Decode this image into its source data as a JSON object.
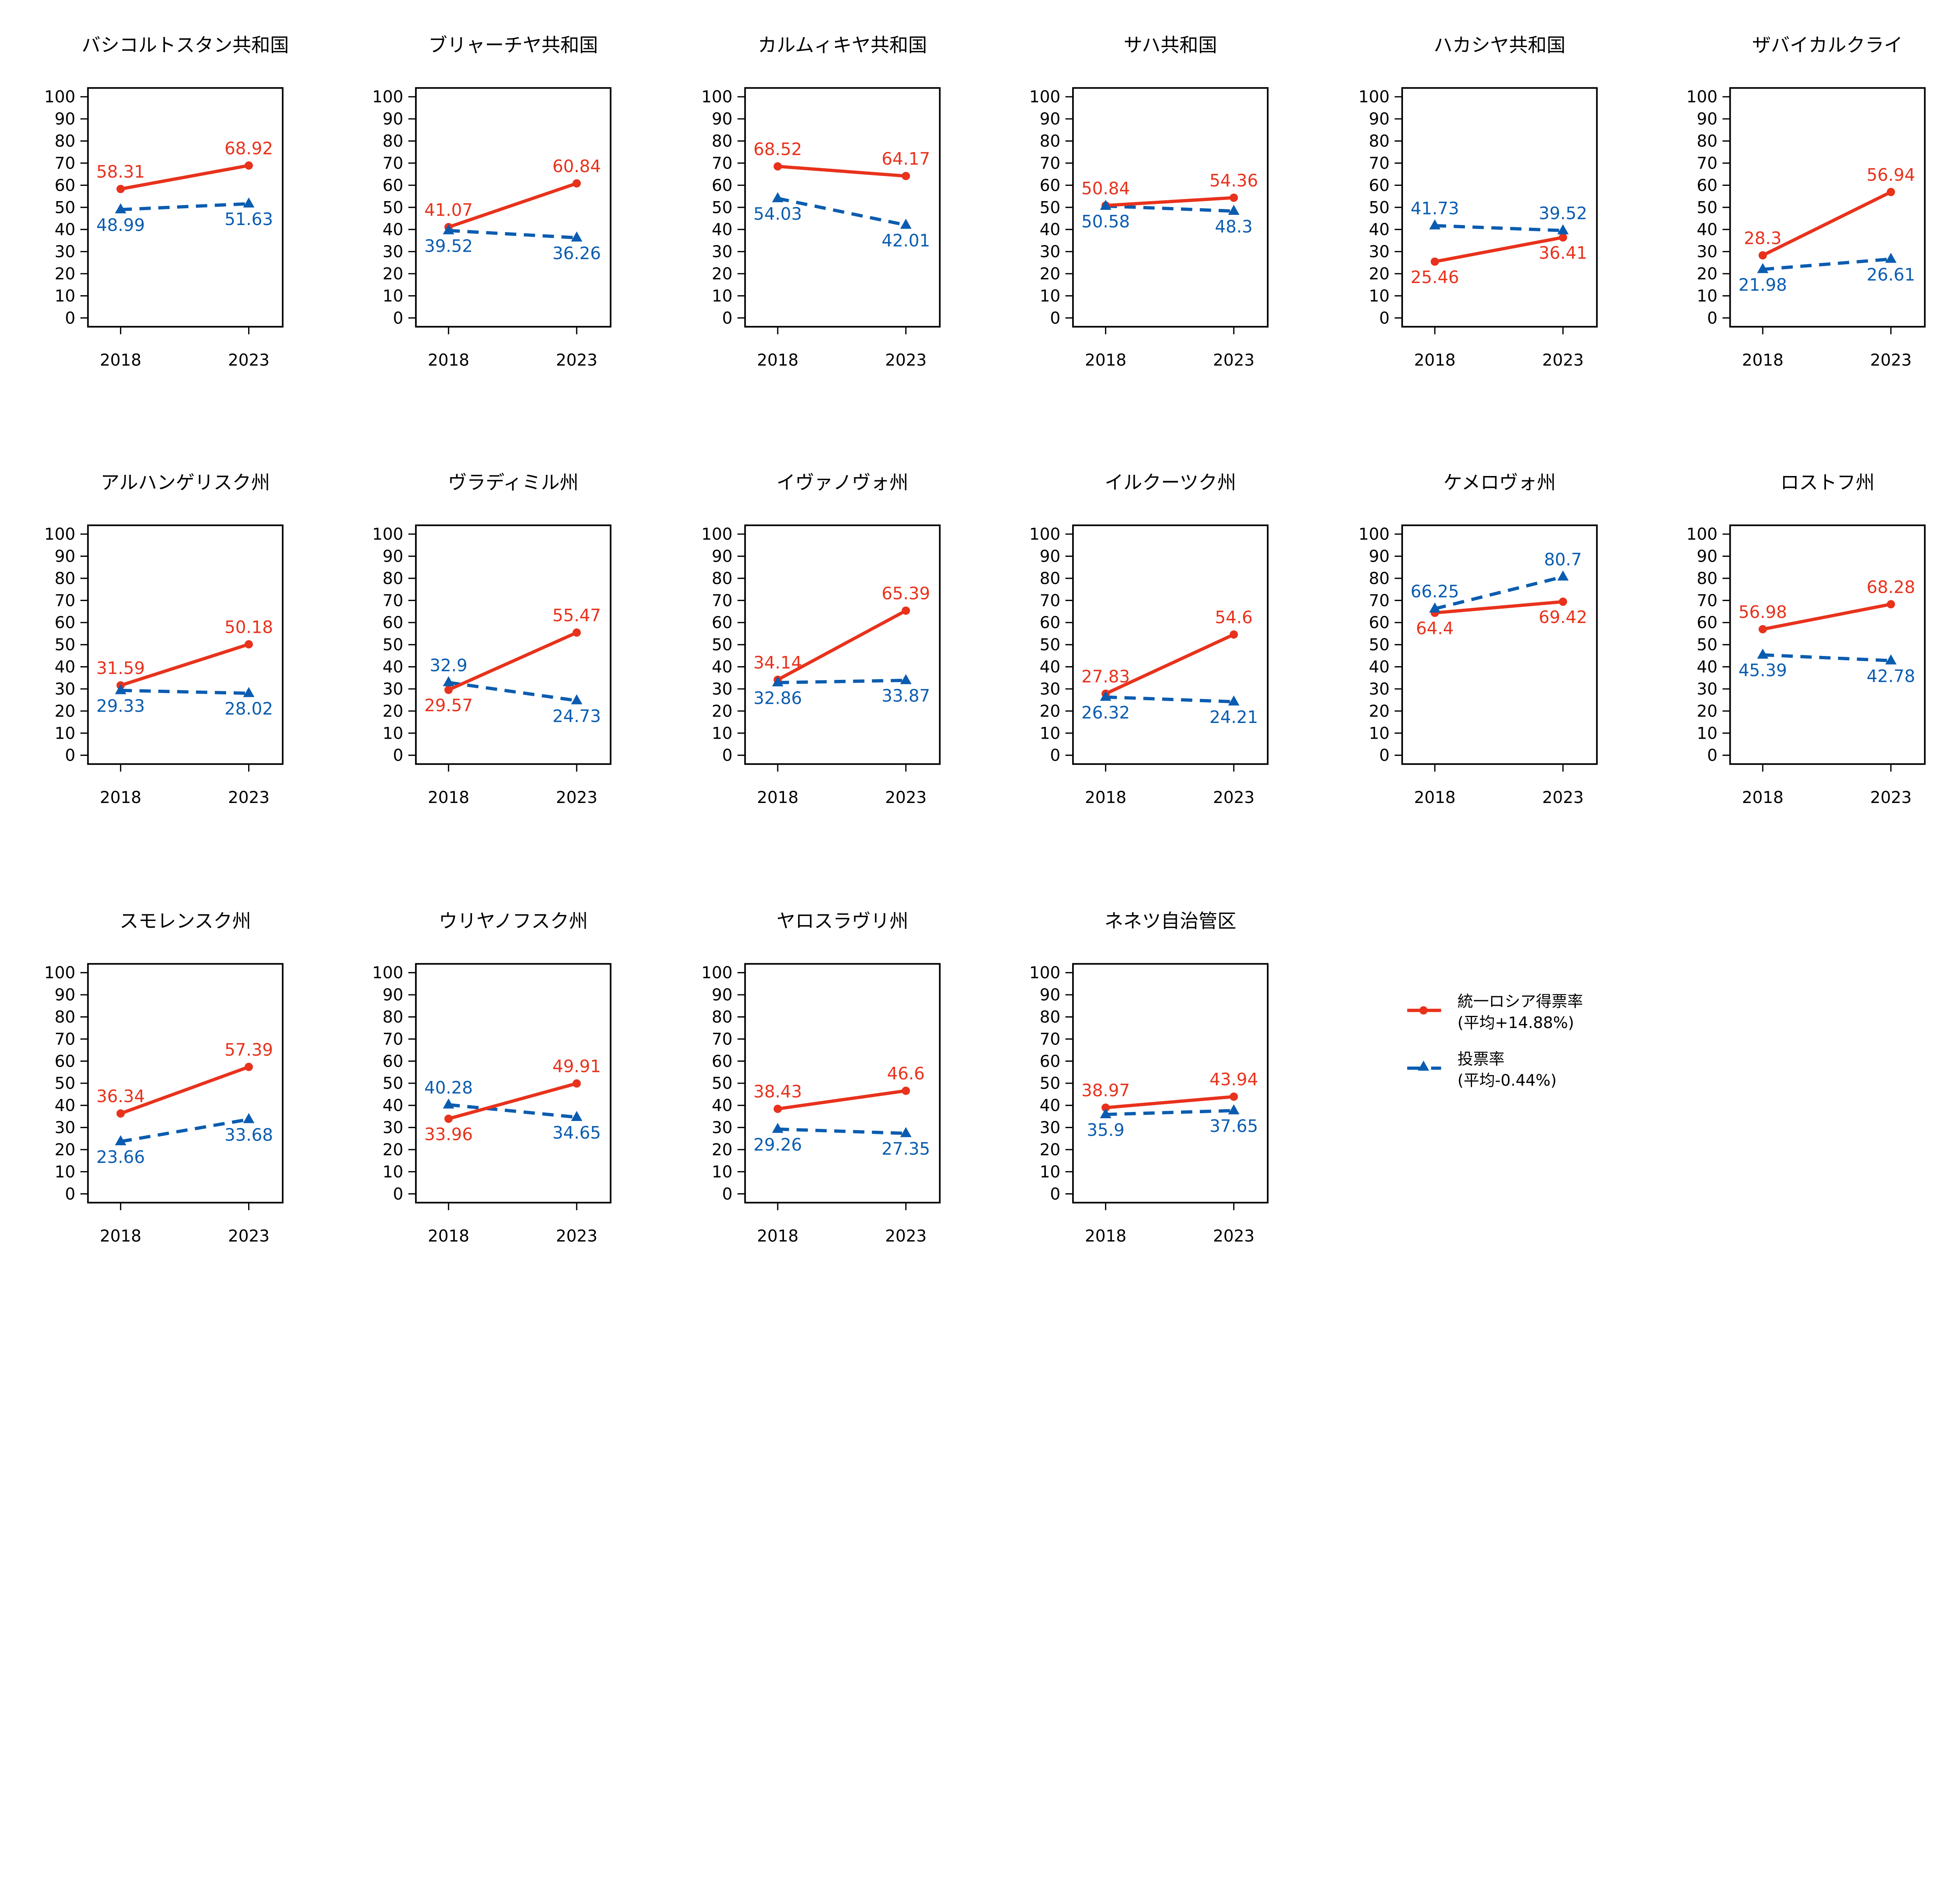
{
  "chart_data": {
    "type": "line",
    "layout": "small multiples, 3 rows x 6 columns",
    "x": [
      "2018",
      "2023"
    ],
    "ylim": [
      0,
      100
    ],
    "yticks": [
      0,
      10,
      20,
      30,
      40,
      50,
      60,
      70,
      80,
      90,
      100
    ],
    "grid": false,
    "legend_placement": "bottom-right",
    "series_styles": [
      {
        "name": "統一ロシア得票率",
        "note": "(平均+14.88%)",
        "color": "#e8321c",
        "line": "solid",
        "marker": "circle"
      },
      {
        "name": "投票率",
        "note": "(平均-0.44%)",
        "color": "#0a5cb0",
        "line": "dashed",
        "marker": "triangle"
      }
    ],
    "panels": [
      {
        "title": "バシコルトスタン共和国",
        "ur": [
          58.31,
          68.92
        ],
        "turnout": [
          48.99,
          51.63
        ]
      },
      {
        "title": "ブリャーチヤ共和国",
        "ur": [
          41.07,
          60.84
        ],
        "turnout": [
          39.52,
          36.26
        ]
      },
      {
        "title": "カルムィキヤ共和国",
        "ur": [
          68.52,
          64.17
        ],
        "turnout": [
          54.03,
          42.01
        ]
      },
      {
        "title": "サハ共和国",
        "ur": [
          50.84,
          54.36
        ],
        "turnout": [
          50.58,
          48.3
        ]
      },
      {
        "title": "ハカシヤ共和国",
        "ur": [
          25.46,
          36.41
        ],
        "turnout": [
          41.73,
          39.52
        ]
      },
      {
        "title": "ザバイカルクライ",
        "ur": [
          28.3,
          56.94
        ],
        "turnout": [
          21.98,
          26.61
        ]
      },
      {
        "title": "アルハンゲリスク州",
        "ur": [
          31.59,
          50.18
        ],
        "turnout": [
          29.33,
          28.02
        ]
      },
      {
        "title": "ヴラディミル州",
        "ur": [
          29.57,
          55.47
        ],
        "turnout": [
          32.9,
          24.73
        ]
      },
      {
        "title": "イヴァノヴォ州",
        "ur": [
          34.14,
          65.39
        ],
        "turnout": [
          32.86,
          33.87
        ]
      },
      {
        "title": "イルクーツク州",
        "ur": [
          27.83,
          54.6
        ],
        "turnout": [
          26.32,
          24.21
        ]
      },
      {
        "title": "ケメロヴォ州",
        "ur": [
          64.4,
          69.42
        ],
        "turnout": [
          66.25,
          80.7
        ]
      },
      {
        "title": "ロストフ州",
        "ur": [
          56.98,
          68.28
        ],
        "turnout": [
          45.39,
          42.78
        ]
      },
      {
        "title": "スモレンスク州",
        "ur": [
          36.34,
          57.39
        ],
        "turnout": [
          23.66,
          33.68
        ]
      },
      {
        "title": "ウリヤノフスク州",
        "ur": [
          33.96,
          49.91
        ],
        "turnout": [
          40.28,
          34.65
        ]
      },
      {
        "title": "ヤロスラヴリ州",
        "ur": [
          38.43,
          46.6
        ],
        "turnout": [
          29.26,
          27.35
        ]
      },
      {
        "title": "ネネツ自治管区",
        "ur": [
          38.97,
          43.94
        ],
        "turnout": [
          35.9,
          37.65
        ]
      }
    ]
  }
}
